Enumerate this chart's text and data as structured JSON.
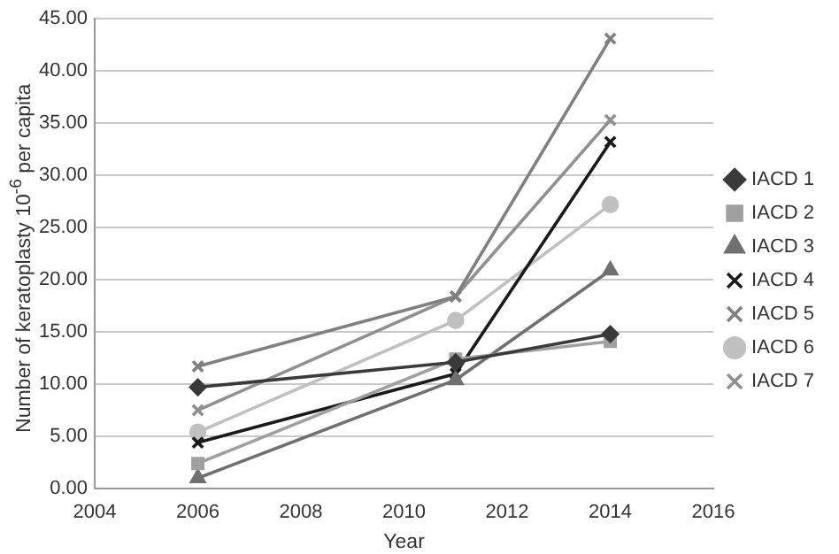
{
  "chart_data": {
    "type": "line",
    "xlabel": "Year",
    "ylabel": "Number of keratoplasty 10$^{-6}$ per capita",
    "x": [
      2006,
      2011,
      2014
    ],
    "series": [
      {
        "name": "IACD 1",
        "color": "#3a3a3a",
        "marker": "diamond",
        "values": [
          9.7,
          12.1,
          14.8
        ]
      },
      {
        "name": "IACD 2",
        "color": "#a0a0a0",
        "marker": "square",
        "values": [
          2.4,
          12.4,
          14.1
        ]
      },
      {
        "name": "IACD 3",
        "color": "#707070",
        "marker": "triangle",
        "values": [
          1.0,
          10.4,
          20.9
        ]
      },
      {
        "name": "IACD 4",
        "color": "#1a1a1a",
        "marker": "cross",
        "values": [
          4.4,
          11.0,
          33.2
        ]
      },
      {
        "name": "IACD 5",
        "color": "#808080",
        "marker": "cross",
        "values": [
          11.7,
          18.4,
          43.1
        ]
      },
      {
        "name": "IACD 6",
        "color": "#c0c0c0",
        "marker": "circle",
        "values": [
          5.4,
          16.1,
          27.2
        ]
      },
      {
        "name": "IACD 7",
        "color": "#909090",
        "marker": "cross",
        "values": [
          7.5,
          18.4,
          35.3
        ]
      }
    ],
    "xlim": [
      2004,
      2016
    ],
    "xticks": [
      2004,
      2006,
      2008,
      2010,
      2012,
      2014,
      2016
    ],
    "ylim": [
      0,
      45
    ],
    "yticks": [
      {
        "value": 0,
        "label": "0.00"
      },
      {
        "value": 5,
        "label": "5.00"
      },
      {
        "value": 10,
        "label": "10.00"
      },
      {
        "value": 15,
        "label": "15.00"
      },
      {
        "value": 20,
        "label": "20.00"
      },
      {
        "value": 25,
        "label": "25.00"
      },
      {
        "value": 30,
        "label": "30.00"
      },
      {
        "value": 35,
        "label": "35.00"
      },
      {
        "value": 40,
        "label": "40.00"
      },
      {
        "value": 45,
        "label": "45.00"
      }
    ],
    "grid": "y",
    "legend": "right",
    "line_style": "solid"
  }
}
